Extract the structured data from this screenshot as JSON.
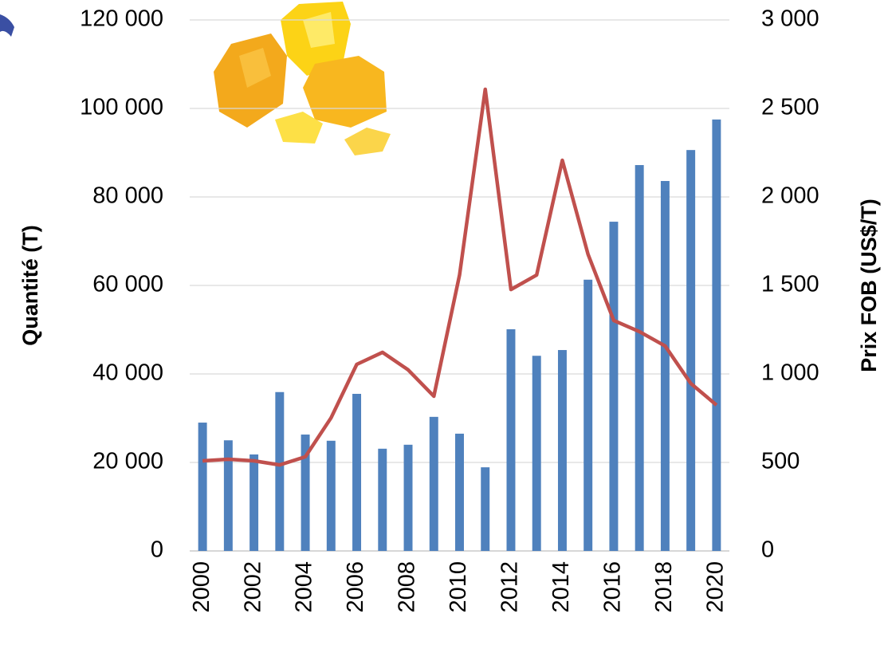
{
  "chart_data": {
    "type": "bar-line",
    "y_label": "Quantité (T)",
    "y2_label": "Prix FOB (US$/T)",
    "x": [
      2000,
      2001,
      2002,
      2003,
      2004,
      2005,
      2006,
      2007,
      2008,
      2009,
      2010,
      2011,
      2012,
      2013,
      2014,
      2015,
      2016,
      2017,
      2018,
      2019,
      2020
    ],
    "xlim": [
      1999.5,
      2020.5
    ],
    "xticks": [
      2000,
      2002,
      2004,
      2006,
      2008,
      2010,
      2012,
      2014,
      2016,
      2018,
      2020
    ],
    "ylim": [
      0,
      120000
    ],
    "yticks": [
      0,
      {
        "value": 20000,
        "label": "20 000"
      },
      {
        "value": 40000,
        "label": "40 000"
      },
      {
        "value": 60000,
        "label": "60 000"
      },
      {
        "value": 80000,
        "label": "80 000"
      },
      {
        "value": 100000,
        "label": "100 000"
      },
      {
        "value": 120000,
        "label": "120 000"
      }
    ],
    "y2lim": [
      0,
      3000
    ],
    "y2ticks": [
      0,
      500,
      {
        "value": 1000,
        "label": "1 000"
      },
      {
        "value": 1500,
        "label": "1 500"
      },
      {
        "value": 2000,
        "label": "2 000"
      },
      {
        "value": 2500,
        "label": "2 500"
      },
      {
        "value": 3000,
        "label": "3 000"
      }
    ],
    "grid": true,
    "series": [
      {
        "kind": "bar",
        "color": "#4f81bd",
        "values": [
          29000,
          25000,
          21800,
          35900,
          26300,
          24900,
          35500,
          23100,
          24000,
          30300,
          26500,
          18900,
          50100,
          44100,
          45400,
          61300,
          74400,
          87200,
          83600,
          90600,
          97500
        ]
      },
      {
        "kind": "line",
        "axis": "y2",
        "color": "#c0504d",
        "values": [
          509,
          518,
          509,
          486,
          532,
          752,
          1054,
          1122,
          1023,
          874,
          1559,
          2608,
          1477,
          1559,
          2207,
          1676,
          1302,
          1239,
          1158,
          946,
          824
        ]
      }
    ]
  }
}
